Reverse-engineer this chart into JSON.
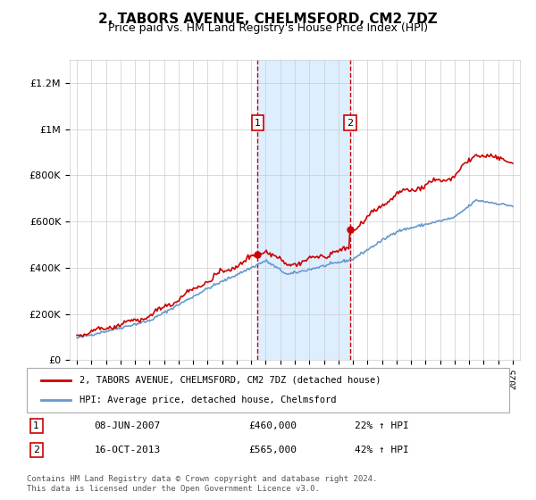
{
  "title": "2, TABORS AVENUE, CHELMSFORD, CM2 7DZ",
  "subtitle": "Price paid vs. HM Land Registry's House Price Index (HPI)",
  "legend_line1": "2, TABORS AVENUE, CHELMSFORD, CM2 7DZ (detached house)",
  "legend_line2": "HPI: Average price, detached house, Chelmsford",
  "sale1_date": "08-JUN-2007",
  "sale1_price": 460000,
  "sale1_hpi": "22% ↑ HPI",
  "sale2_date": "16-OCT-2013",
  "sale2_price": 565000,
  "sale2_hpi": "42% ↑ HPI",
  "footer": "Contains HM Land Registry data © Crown copyright and database right 2024.\nThis data is licensed under the Open Government Licence v3.0.",
  "hpi_color": "#6699cc",
  "price_color": "#cc0000",
  "sale_marker_color": "#cc0000",
  "shaded_region_color": "#ddeeff",
  "dashed_line_color": "#cc0000",
  "ylim_min": 0,
  "ylim_max": 1300000,
  "yticks": [
    0,
    200000,
    400000,
    600000,
    800000,
    1000000,
    1200000
  ],
  "xlim_min": 1994.5,
  "xlim_max": 2025.5,
  "sale1_year": 2007.44,
  "sale2_year": 2013.79
}
